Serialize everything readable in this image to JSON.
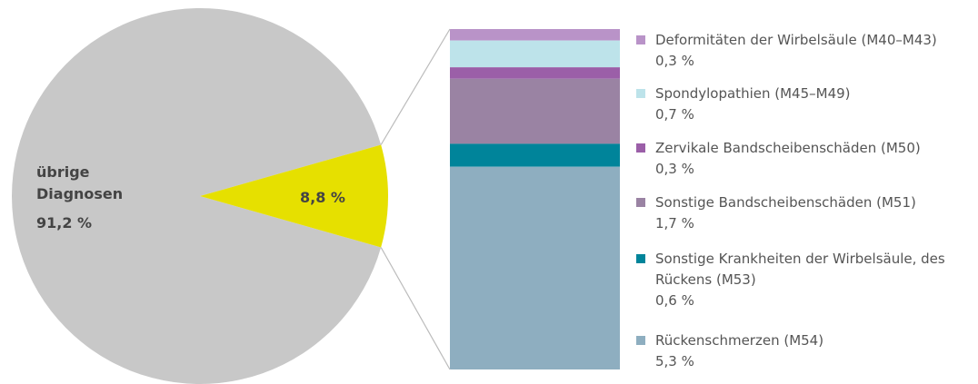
{
  "chart_data": [
    {
      "type": "pie",
      "categories": [
        "übrige Diagnosen",
        null
      ],
      "values": [
        91.2,
        8.8
      ],
      "value_labels": [
        "91,2 %",
        "8,8 %"
      ],
      "colors": [
        "#c8c8c8",
        "#e6e000"
      ]
    },
    {
      "type": "stacked_bar",
      "series": [
        {
          "name": "Deformitäten der Wirbelsäule (M40–M43)",
          "color": "#b993c8",
          "values": [
            0.3
          ],
          "value_labels": [
            "0,3 %"
          ]
        },
        {
          "name": "Spondylopathien (M45–M49)",
          "color": "#bde3ea",
          "values": [
            0.7
          ],
          "value_labels": [
            "0,7 %"
          ]
        },
        {
          "name": "Zervikale Bandscheibenschäden (M50)",
          "color": "#9b5fa8",
          "values": [
            0.3
          ],
          "value_labels": [
            "0,3 %"
          ]
        },
        {
          "name": "Sonstige Bandscheibenschäden (M51)",
          "color": "#9a83a3",
          "values": [
            1.7
          ],
          "value_labels": [
            "1,7 %"
          ]
        },
        {
          "name": "Sonstige Krankheiten der Wirbelsäule, des Rückens (M53)",
          "color": "#00849a",
          "values": [
            0.6
          ],
          "value_labels": [
            "0,6 %"
          ]
        },
        {
          "name": "Rückenschmerzen (M54)",
          "color": "#8eaec0",
          "values": [
            5.3
          ],
          "value_labels": [
            "5,3 %"
          ]
        }
      ]
    }
  ]
}
